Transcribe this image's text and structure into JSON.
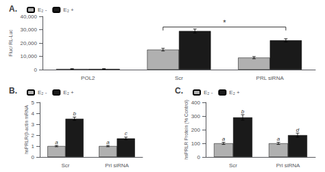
{
  "chart_data": [
    {
      "type": "bar",
      "title": "A.",
      "categories": [
        "POL2",
        "Scr",
        "PRL siRNA"
      ],
      "ylabel": "Fluc/ RL-Luc",
      "series": [
        {
          "name": "E₂ -",
          "color": "#b0b0b0",
          "values": [
            500,
            15000,
            9000
          ],
          "yerr": [
            200,
            1000,
            800
          ]
        },
        {
          "name": "E₂ +",
          "color": "#1a1a1a",
          "values": [
            500,
            29000,
            22000
          ],
          "yerr": [
            200,
            1500,
            1200
          ]
        }
      ],
      "ylim": [
        0,
        40000
      ],
      "yticks": [
        0,
        10000,
        20000,
        30000,
        40000
      ],
      "grid": false,
      "legend": "upper left",
      "annotations": [
        {
          "text": "*",
          "from": "Scr",
          "to": "PRL siRNA",
          "y": 32000
        }
      ]
    },
    {
      "type": "bar",
      "title": "B.",
      "categories": [
        "Scr",
        "Prl siRNA"
      ],
      "ylabel": "hsPRLR/β-actin mRNA",
      "series": [
        {
          "name": "E₂ -",
          "color": "#b0b0b0",
          "values": [
            1.0,
            1.0
          ],
          "yerr": [
            0.06,
            0.06
          ],
          "letters": [
            "a",
            "a"
          ]
        },
        {
          "name": "E₂ +",
          "color": "#1a1a1a",
          "values": [
            3.5,
            1.7
          ],
          "yerr": [
            0.15,
            0.12
          ],
          "letters": [
            "b",
            "c"
          ]
        }
      ],
      "ylim": [
        0,
        5
      ],
      "yticks": [
        0,
        1,
        2,
        3,
        4,
        5
      ],
      "grid": false,
      "legend": "upper left"
    },
    {
      "type": "bar",
      "title": "C.",
      "categories": [
        "Scr",
        "Prl siRNA"
      ],
      "ylabel": "hsPRLR Protein (% Control)",
      "series": [
        {
          "name": "E₂ -",
          "color": "#b0b0b0",
          "values": [
            100,
            100
          ],
          "yerr": [
            8,
            8
          ],
          "letters": [
            "a",
            "a"
          ]
        },
        {
          "name": "E₂ +",
          "color": "#1a1a1a",
          "values": [
            290,
            160
          ],
          "yerr": [
            20,
            15
          ],
          "letters": [
            "b",
            "d"
          ]
        }
      ],
      "ylim": [
        0,
        400
      ],
      "yticks": [
        0,
        100,
        200,
        300,
        400
      ],
      "grid": false,
      "legend": "upper left"
    }
  ]
}
